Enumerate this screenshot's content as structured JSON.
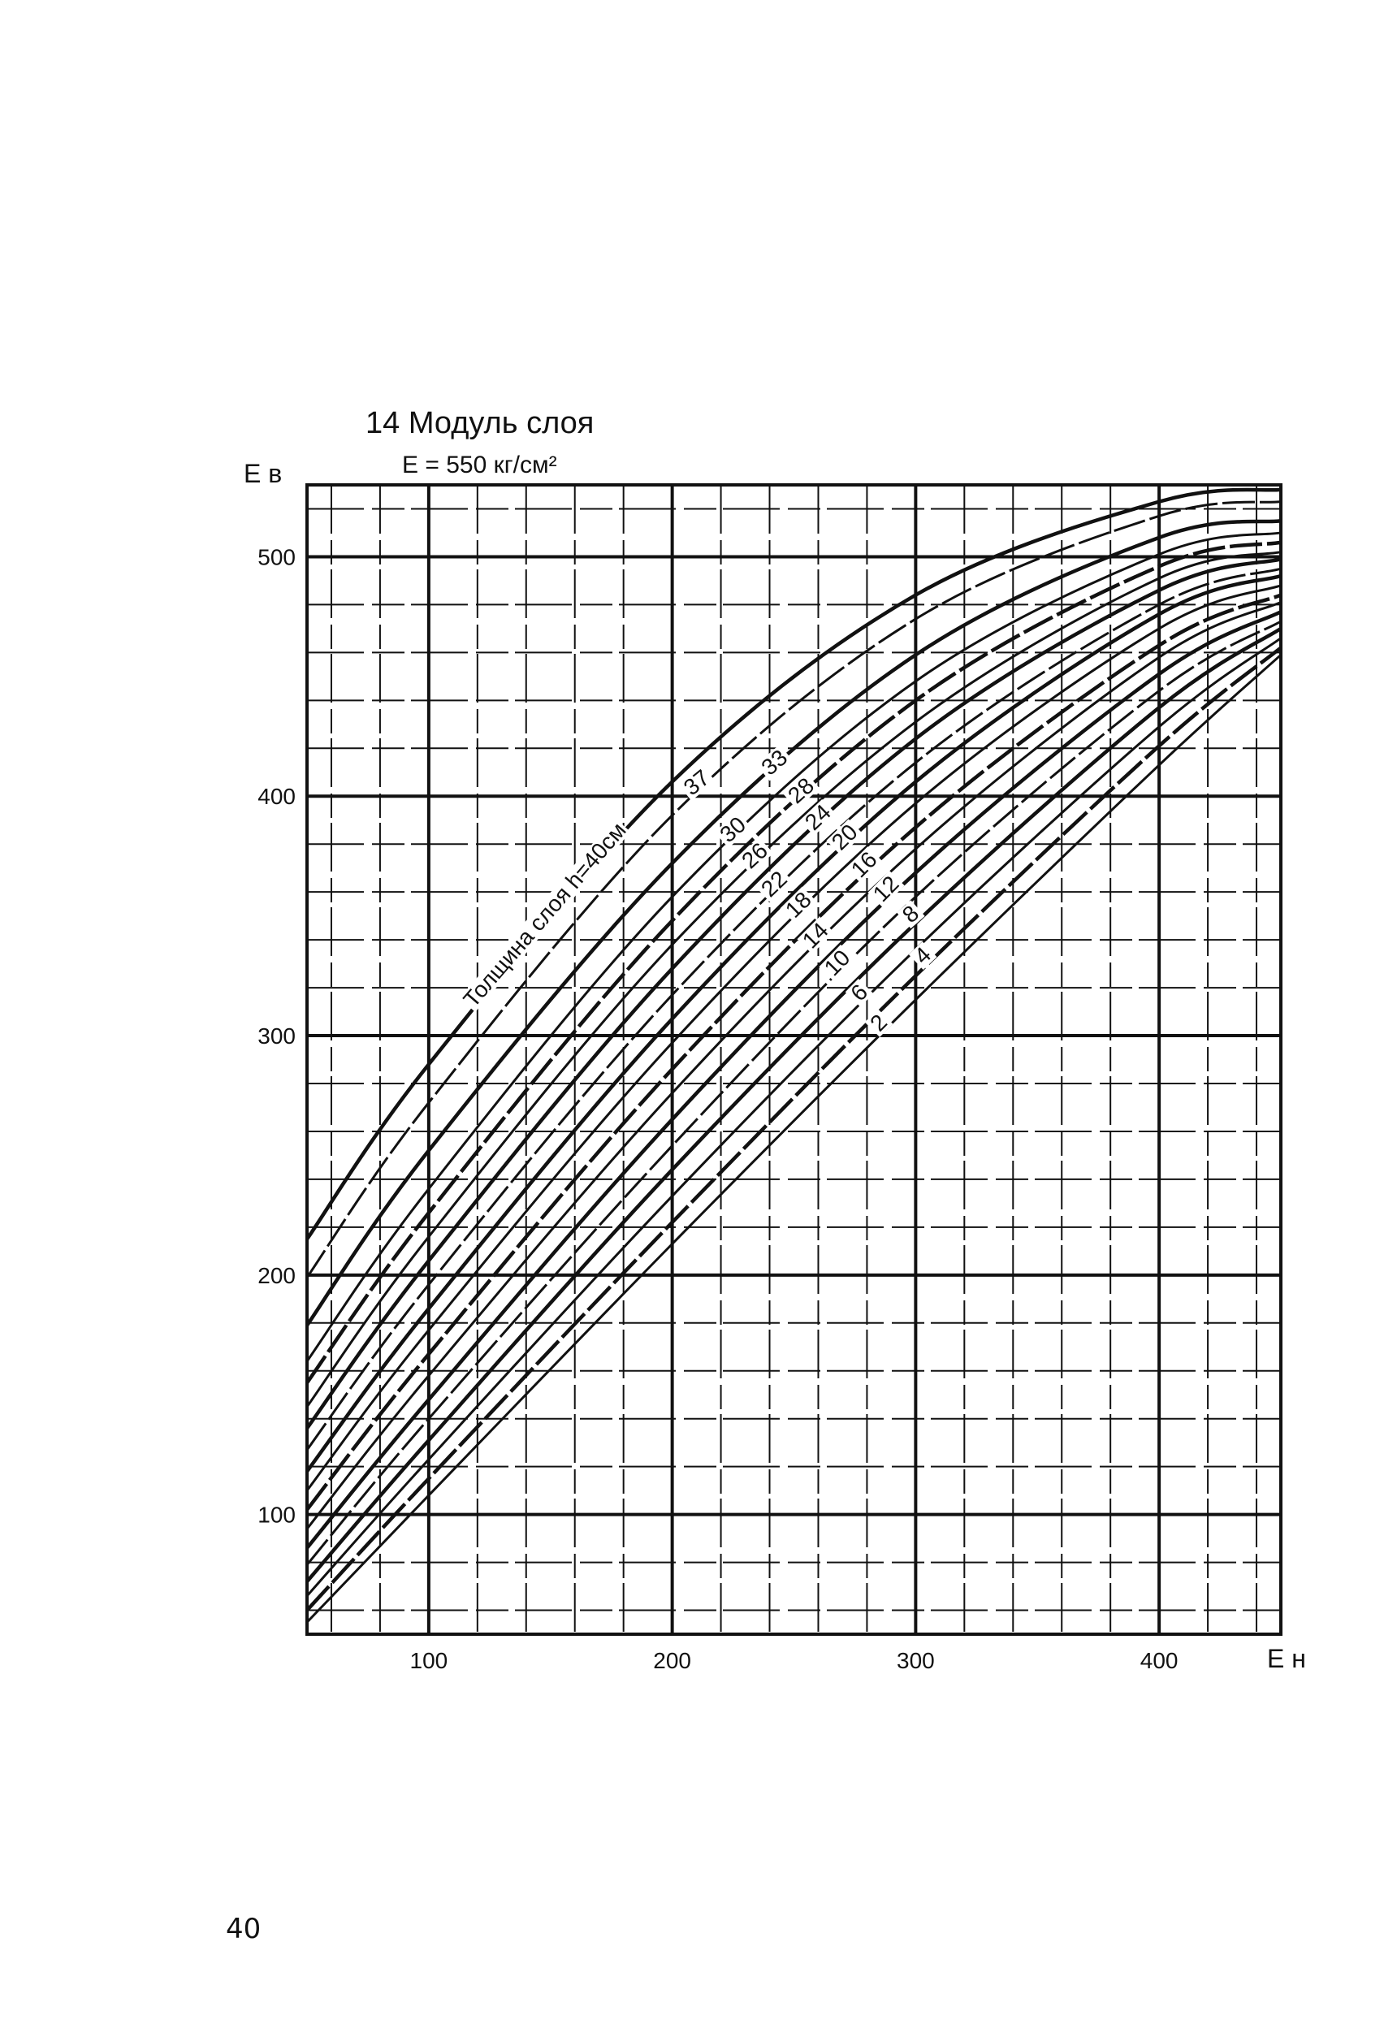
{
  "chart_data": {
    "type": "line",
    "title": "14 Модуль слоя",
    "subtitle": "E = 550 кг/см²",
    "xlabel": "Е н",
    "ylabel": "Е в",
    "xlim": [
      50,
      450
    ],
    "ylim": [
      50,
      530
    ],
    "x_ticks": [
      100,
      200,
      300,
      400
    ],
    "y_ticks": [
      100,
      200,
      300,
      400,
      500
    ],
    "grid": true,
    "grid_minor_step": 20,
    "line_color": "#111111",
    "curve_label_prefix": "Толщина слоя h=",
    "curve_label_suffix": "см",
    "x": [
      50,
      100,
      200,
      300,
      400,
      450
    ],
    "series": [
      {
        "name": "40",
        "values": [
          215,
          288,
          406,
          484,
          523,
          528
        ]
      },
      {
        "name": "37",
        "values": [
          199,
          272,
          392,
          474,
          517,
          523
        ]
      },
      {
        "name": "33",
        "values": [
          179,
          252,
          372,
          459,
          508,
          515
        ]
      },
      {
        "name": "30",
        "values": [
          164,
          236,
          358,
          448,
          501,
          510
        ]
      },
      {
        "name": "28",
        "values": [
          155,
          226,
          348,
          440,
          496,
          506
        ]
      },
      {
        "name": "26",
        "values": [
          145,
          216,
          338,
          431,
          491,
          502
        ]
      },
      {
        "name": "24",
        "values": [
          136,
          206,
          328,
          424,
          486,
          499
        ]
      },
      {
        "name": "22",
        "values": [
          127,
          196,
          317,
          414,
          480,
          495
        ]
      },
      {
        "name": "20",
        "values": [
          118,
          186,
          307,
          406,
          476,
          492
        ]
      },
      {
        "name": "18",
        "values": [
          110,
          177,
          297,
          397,
          470,
          488
        ]
      },
      {
        "name": "16",
        "values": [
          102,
          167,
          286,
          387,
          463,
          484
        ]
      },
      {
        "name": "14",
        "values": [
          94,
          158,
          276,
          378,
          458,
          481
        ]
      },
      {
        "name": "12",
        "values": [
          86,
          148,
          265,
          368,
          451,
          477
        ]
      },
      {
        "name": "10",
        "values": [
          79,
          140,
          254,
          358,
          444,
          473
        ]
      },
      {
        "name": "8",
        "values": [
          72,
          131,
          244,
          347,
          437,
          470
        ]
      },
      {
        "name": "6",
        "values": [
          66,
          123,
          233,
          336,
          429,
          466
        ]
      },
      {
        "name": "4",
        "values": [
          60,
          115,
          222,
          325,
          421,
          462
        ]
      },
      {
        "name": "2",
        "values": [
          55,
          108,
          213,
          315,
          413,
          459
        ]
      }
    ]
  },
  "page_number": "40"
}
